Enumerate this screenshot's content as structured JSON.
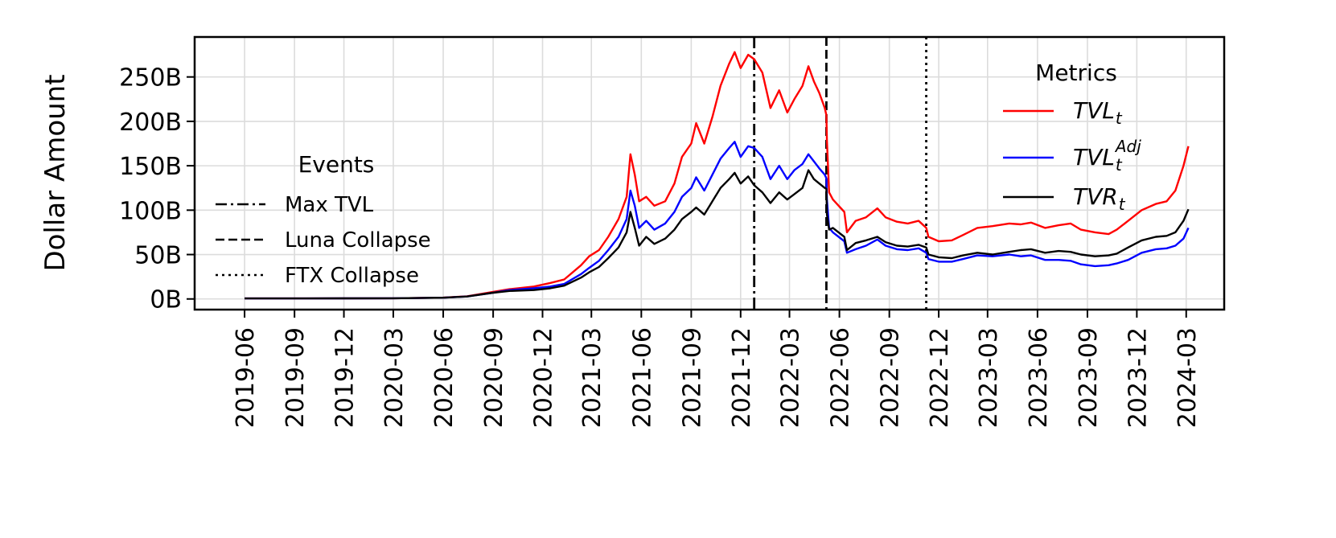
{
  "chart_data": {
    "type": "line",
    "ylabel": "Dollar Amount",
    "xlabel": "",
    "y_unit": "B",
    "ylim": [
      -12,
      295
    ],
    "xlim": [
      "2019-03-01",
      "2024-05-10"
    ],
    "grid": true,
    "y_ticks": [
      {
        "value": 0,
        "label": "0B"
      },
      {
        "value": 50,
        "label": "50B"
      },
      {
        "value": 100,
        "label": "100B"
      },
      {
        "value": 150,
        "label": "150B"
      },
      {
        "value": 200,
        "label": "200B"
      },
      {
        "value": 250,
        "label": "250B"
      }
    ],
    "x_ticks": [
      "2019-06",
      "2019-09",
      "2019-12",
      "2020-03",
      "2020-06",
      "2020-09",
      "2020-12",
      "2021-03",
      "2021-06",
      "2021-09",
      "2021-12",
      "2022-03",
      "2022-06",
      "2022-09",
      "2022-12",
      "2023-03",
      "2023-06",
      "2023-09",
      "2023-12",
      "2024-03"
    ],
    "events_legend": {
      "title": "Events",
      "placement": "center-left",
      "items": [
        {
          "label": "Max TVL",
          "date": "2021-12-26",
          "style": "dashdot"
        },
        {
          "label": "Luna Collapse",
          "date": "2022-05-08",
          "style": "dashed"
        },
        {
          "label": "FTX Collapse",
          "date": "2022-11-08",
          "style": "dotted"
        }
      ]
    },
    "metrics_legend": {
      "title": "Metrics",
      "placement": "upper-right"
    },
    "series": [
      {
        "name": "TVL",
        "subscript": "t",
        "superscript": "",
        "color": "#ff0000",
        "points": [
          [
            "2019-06-01",
            0.6
          ],
          [
            "2019-09-01",
            0.6
          ],
          [
            "2019-12-01",
            0.7
          ],
          [
            "2020-03-01",
            0.8
          ],
          [
            "2020-06-01",
            1.5
          ],
          [
            "2020-07-15",
            3
          ],
          [
            "2020-09-01",
            8
          ],
          [
            "2020-10-01",
            11
          ],
          [
            "2020-11-15",
            14
          ],
          [
            "2020-12-15",
            18
          ],
          [
            "2021-01-10",
            22
          ],
          [
            "2021-02-10",
            38
          ],
          [
            "2021-02-25",
            48
          ],
          [
            "2021-03-15",
            55
          ],
          [
            "2021-04-01",
            70
          ],
          [
            "2021-04-20",
            90
          ],
          [
            "2021-05-05",
            115
          ],
          [
            "2021-05-12",
            163
          ],
          [
            "2021-05-20",
            140
          ],
          [
            "2021-05-28",
            110
          ],
          [
            "2021-06-10",
            115
          ],
          [
            "2021-06-25",
            105
          ],
          [
            "2021-07-15",
            110
          ],
          [
            "2021-08-01",
            130
          ],
          [
            "2021-08-15",
            160
          ],
          [
            "2021-09-01",
            175
          ],
          [
            "2021-09-10",
            198
          ],
          [
            "2021-09-25",
            175
          ],
          [
            "2021-10-10",
            205
          ],
          [
            "2021-10-25",
            240
          ],
          [
            "2021-11-10",
            265
          ],
          [
            "2021-11-20",
            278
          ],
          [
            "2021-12-01",
            260
          ],
          [
            "2021-12-15",
            275
          ],
          [
            "2021-12-26",
            270
          ],
          [
            "2022-01-10",
            255
          ],
          [
            "2022-01-25",
            215
          ],
          [
            "2022-02-10",
            235
          ],
          [
            "2022-02-25",
            210
          ],
          [
            "2022-03-10",
            225
          ],
          [
            "2022-03-25",
            240
          ],
          [
            "2022-04-05",
            262
          ],
          [
            "2022-04-15",
            245
          ],
          [
            "2022-04-25",
            232
          ],
          [
            "2022-05-05",
            215
          ],
          [
            "2022-05-08",
            207
          ],
          [
            "2022-05-09",
            178
          ],
          [
            "2022-05-13",
            120
          ],
          [
            "2022-05-20",
            112
          ],
          [
            "2022-06-10",
            98
          ],
          [
            "2022-06-15",
            75
          ],
          [
            "2022-07-01",
            88
          ],
          [
            "2022-07-20",
            92
          ],
          [
            "2022-08-10",
            102
          ],
          [
            "2022-08-25",
            92
          ],
          [
            "2022-09-15",
            87
          ],
          [
            "2022-10-05",
            85
          ],
          [
            "2022-10-25",
            88
          ],
          [
            "2022-11-08",
            80
          ],
          [
            "2022-11-12",
            70
          ],
          [
            "2022-12-01",
            65
          ],
          [
            "2022-12-25",
            66
          ],
          [
            "2023-01-15",
            72
          ],
          [
            "2023-02-10",
            80
          ],
          [
            "2023-03-10",
            82
          ],
          [
            "2023-04-10",
            85
          ],
          [
            "2023-05-01",
            84
          ],
          [
            "2023-05-20",
            86
          ],
          [
            "2023-06-15",
            80
          ],
          [
            "2023-07-10",
            83
          ],
          [
            "2023-08-01",
            85
          ],
          [
            "2023-08-20",
            78
          ],
          [
            "2023-09-15",
            75
          ],
          [
            "2023-10-10",
            73
          ],
          [
            "2023-10-25",
            78
          ],
          [
            "2023-11-15",
            88
          ],
          [
            "2023-12-10",
            100
          ],
          [
            "2024-01-05",
            107
          ],
          [
            "2024-01-25",
            110
          ],
          [
            "2024-02-10",
            122
          ],
          [
            "2024-02-25",
            150
          ],
          [
            "2024-03-05",
            172
          ]
        ]
      },
      {
        "name": "TVL",
        "subscript": "t",
        "superscript": "Adj",
        "color": "#0000ff",
        "points": [
          [
            "2019-06-01",
            0.6
          ],
          [
            "2019-09-01",
            0.6
          ],
          [
            "2019-12-01",
            0.7
          ],
          [
            "2020-03-01",
            0.8
          ],
          [
            "2020-06-01",
            1.4
          ],
          [
            "2020-07-15",
            2.8
          ],
          [
            "2020-09-01",
            7
          ],
          [
            "2020-10-01",
            10
          ],
          [
            "2020-11-15",
            12
          ],
          [
            "2020-12-15",
            14
          ],
          [
            "2021-01-10",
            17
          ],
          [
            "2021-02-10",
            28
          ],
          [
            "2021-02-25",
            35
          ],
          [
            "2021-03-15",
            43
          ],
          [
            "2021-04-01",
            55
          ],
          [
            "2021-04-20",
            70
          ],
          [
            "2021-05-05",
            90
          ],
          [
            "2021-05-12",
            122
          ],
          [
            "2021-05-20",
            105
          ],
          [
            "2021-05-28",
            80
          ],
          [
            "2021-06-10",
            88
          ],
          [
            "2021-06-25",
            78
          ],
          [
            "2021-07-15",
            85
          ],
          [
            "2021-08-01",
            98
          ],
          [
            "2021-08-15",
            115
          ],
          [
            "2021-09-01",
            125
          ],
          [
            "2021-09-10",
            137
          ],
          [
            "2021-09-25",
            122
          ],
          [
            "2021-10-10",
            140
          ],
          [
            "2021-10-25",
            158
          ],
          [
            "2021-11-10",
            170
          ],
          [
            "2021-11-20",
            177
          ],
          [
            "2021-12-01",
            160
          ],
          [
            "2021-12-15",
            172
          ],
          [
            "2021-12-26",
            170
          ],
          [
            "2022-01-10",
            160
          ],
          [
            "2022-01-25",
            135
          ],
          [
            "2022-02-10",
            150
          ],
          [
            "2022-02-25",
            135
          ],
          [
            "2022-03-10",
            145
          ],
          [
            "2022-03-25",
            152
          ],
          [
            "2022-04-05",
            163
          ],
          [
            "2022-04-15",
            155
          ],
          [
            "2022-04-25",
            147
          ],
          [
            "2022-05-05",
            140
          ],
          [
            "2022-05-08",
            136
          ],
          [
            "2022-05-09",
            112
          ],
          [
            "2022-05-13",
            80
          ],
          [
            "2022-05-20",
            75
          ],
          [
            "2022-06-10",
            65
          ],
          [
            "2022-06-15",
            52
          ],
          [
            "2022-07-01",
            56
          ],
          [
            "2022-07-20",
            60
          ],
          [
            "2022-08-10",
            67
          ],
          [
            "2022-08-25",
            60
          ],
          [
            "2022-09-15",
            56
          ],
          [
            "2022-10-05",
            55
          ],
          [
            "2022-10-25",
            57
          ],
          [
            "2022-11-08",
            52
          ],
          [
            "2022-11-12",
            45
          ],
          [
            "2022-12-01",
            42
          ],
          [
            "2022-12-25",
            42
          ],
          [
            "2023-01-15",
            45
          ],
          [
            "2023-02-10",
            49
          ],
          [
            "2023-03-10",
            48
          ],
          [
            "2023-04-10",
            50
          ],
          [
            "2023-05-01",
            48
          ],
          [
            "2023-05-20",
            49
          ],
          [
            "2023-06-15",
            44
          ],
          [
            "2023-07-10",
            44
          ],
          [
            "2023-08-01",
            43
          ],
          [
            "2023-08-20",
            39
          ],
          [
            "2023-09-15",
            37
          ],
          [
            "2023-10-10",
            38
          ],
          [
            "2023-10-25",
            40
          ],
          [
            "2023-11-15",
            44
          ],
          [
            "2023-12-10",
            52
          ],
          [
            "2024-01-05",
            56
          ],
          [
            "2024-01-25",
            57
          ],
          [
            "2024-02-10",
            60
          ],
          [
            "2024-02-25",
            68
          ],
          [
            "2024-03-05",
            80
          ]
        ]
      },
      {
        "name": "TVR",
        "subscript": "t",
        "superscript": "",
        "color": "#000000",
        "points": [
          [
            "2019-06-01",
            0.6
          ],
          [
            "2019-09-01",
            0.6
          ],
          [
            "2019-12-01",
            0.7
          ],
          [
            "2020-03-01",
            0.8
          ],
          [
            "2020-06-01",
            1.4
          ],
          [
            "2020-07-15",
            2.8
          ],
          [
            "2020-09-01",
            7
          ],
          [
            "2020-10-01",
            9
          ],
          [
            "2020-11-15",
            10
          ],
          [
            "2020-12-15",
            12
          ],
          [
            "2021-01-10",
            15
          ],
          [
            "2021-02-10",
            24
          ],
          [
            "2021-02-25",
            30
          ],
          [
            "2021-03-15",
            36
          ],
          [
            "2021-04-01",
            46
          ],
          [
            "2021-04-20",
            58
          ],
          [
            "2021-05-05",
            75
          ],
          [
            "2021-05-12",
            98
          ],
          [
            "2021-05-20",
            80
          ],
          [
            "2021-05-28",
            60
          ],
          [
            "2021-06-10",
            70
          ],
          [
            "2021-06-25",
            62
          ],
          [
            "2021-07-15",
            68
          ],
          [
            "2021-08-01",
            78
          ],
          [
            "2021-08-15",
            90
          ],
          [
            "2021-09-01",
            98
          ],
          [
            "2021-09-10",
            103
          ],
          [
            "2021-09-25",
            95
          ],
          [
            "2021-10-10",
            110
          ],
          [
            "2021-10-25",
            125
          ],
          [
            "2021-11-10",
            135
          ],
          [
            "2021-11-20",
            142
          ],
          [
            "2021-12-01",
            130
          ],
          [
            "2021-12-15",
            138
          ],
          [
            "2021-12-26",
            128
          ],
          [
            "2022-01-10",
            120
          ],
          [
            "2022-01-25",
            108
          ],
          [
            "2022-02-10",
            120
          ],
          [
            "2022-02-25",
            112
          ],
          [
            "2022-03-10",
            118
          ],
          [
            "2022-03-25",
            125
          ],
          [
            "2022-04-05",
            145
          ],
          [
            "2022-04-15",
            135
          ],
          [
            "2022-04-25",
            130
          ],
          [
            "2022-05-05",
            125
          ],
          [
            "2022-05-08",
            124
          ],
          [
            "2022-05-09",
            95
          ],
          [
            "2022-05-13",
            78
          ],
          [
            "2022-05-20",
            80
          ],
          [
            "2022-06-10",
            70
          ],
          [
            "2022-06-15",
            55
          ],
          [
            "2022-07-01",
            63
          ],
          [
            "2022-07-20",
            66
          ],
          [
            "2022-08-10",
            70
          ],
          [
            "2022-08-25",
            64
          ],
          [
            "2022-09-15",
            60
          ],
          [
            "2022-10-05",
            59
          ],
          [
            "2022-10-25",
            61
          ],
          [
            "2022-11-08",
            58
          ],
          [
            "2022-11-12",
            50
          ],
          [
            "2022-12-01",
            47
          ],
          [
            "2022-12-25",
            46
          ],
          [
            "2023-01-15",
            49
          ],
          [
            "2023-02-10",
            52
          ],
          [
            "2023-03-10",
            50
          ],
          [
            "2023-04-10",
            53
          ],
          [
            "2023-05-01",
            55
          ],
          [
            "2023-05-20",
            56
          ],
          [
            "2023-06-15",
            52
          ],
          [
            "2023-07-10",
            54
          ],
          [
            "2023-08-01",
            53
          ],
          [
            "2023-08-20",
            50
          ],
          [
            "2023-09-15",
            48
          ],
          [
            "2023-10-10",
            49
          ],
          [
            "2023-10-25",
            51
          ],
          [
            "2023-11-15",
            58
          ],
          [
            "2023-12-10",
            66
          ],
          [
            "2024-01-05",
            70
          ],
          [
            "2024-01-25",
            71
          ],
          [
            "2024-02-10",
            75
          ],
          [
            "2024-02-25",
            88
          ],
          [
            "2024-03-05",
            101
          ]
        ]
      }
    ]
  }
}
